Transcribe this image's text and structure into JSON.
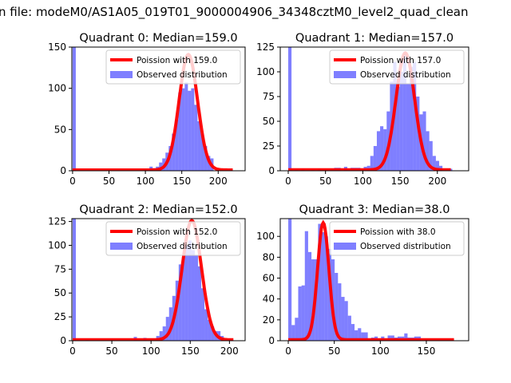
{
  "suptitle": "n file: modeM0/AS1A05_019T01_9000004906_34348cztM0_level2_quad_clean",
  "colors": {
    "hist": "#0000ff",
    "curve": "#ff0000"
  },
  "chart_data": [
    {
      "type": "bar",
      "title": "Quadrant 0: Median=159.0",
      "legend": {
        "curve": "Poission with 159.0",
        "hist": "Observed distribution",
        "placement": "top-right"
      },
      "lambda": 159.0,
      "curve_peak": 140,
      "curve_xmax": 220,
      "bin_start": 0,
      "bin_width": 4.4,
      "values": [
        300,
        0,
        0,
        0,
        0,
        0,
        0,
        0,
        0,
        0,
        0,
        0,
        0,
        0,
        0,
        0,
        0,
        0,
        0,
        0,
        0,
        0,
        2,
        1,
        5,
        3,
        5,
        10,
        15,
        22,
        30,
        45,
        62,
        95,
        100,
        107,
        97,
        100,
        80,
        60,
        45,
        30,
        18,
        15,
        0,
        0,
        0,
        0,
        0,
        2
      ],
      "xlim": [
        -1,
        237
      ],
      "ylim": [
        0,
        150
      ],
      "xticks": [
        "0",
        "50",
        "100",
        "150",
        "200"
      ],
      "yticks": [
        "0",
        "50",
        "100",
        "150"
      ]
    },
    {
      "type": "bar",
      "title": "Quadrant 1: Median=157.0",
      "legend": {
        "curve": "Poission with 157.0",
        "hist": "Observed distribution",
        "placement": "top-right"
      },
      "lambda": 157.0,
      "curve_peak": 118,
      "curve_xmax": 218,
      "bin_start": 0,
      "bin_width": 4.4,
      "values": [
        200,
        0,
        1,
        0,
        2,
        0,
        0,
        1,
        0,
        2,
        1,
        1,
        1,
        2,
        3,
        3,
        0,
        4,
        1,
        3,
        3,
        3,
        0,
        4,
        5,
        15,
        25,
        40,
        45,
        42,
        60,
        90,
        110,
        85,
        100,
        120,
        88,
        105,
        110,
        75,
        57,
        60,
        40,
        30,
        15,
        10,
        5,
        0,
        0,
        2
      ],
      "xlim": [
        -10.7,
        242
      ],
      "ylim": [
        0,
        125
      ],
      "xticks": [
        "0",
        "50",
        "100",
        "150",
        "200"
      ],
      "yticks": [
        "0",
        "25",
        "50",
        "75",
        "100",
        "125"
      ]
    },
    {
      "type": "bar",
      "title": "Quadrant 2: Median=152.0",
      "legend": {
        "curve": "Poission with 152.0",
        "hist": "Observed distribution",
        "placement": "top-right"
      },
      "lambda": 152.0,
      "curve_peak": 125,
      "curve_xmax": 205,
      "bin_start": 0,
      "bin_width": 4.1,
      "values": [
        200,
        0,
        0,
        0,
        1,
        0,
        0,
        0,
        0,
        0,
        0,
        0,
        1,
        0,
        0,
        0,
        0,
        0,
        0,
        4,
        1,
        0,
        3,
        0,
        2,
        2,
        5,
        10,
        15,
        25,
        35,
        47,
        63,
        80,
        88,
        100,
        105,
        95,
        90,
        78,
        55,
        33,
        22,
        15,
        10,
        10,
        5,
        0,
        0,
        1
      ],
      "xlim": [
        -1,
        220
      ],
      "ylim": [
        0,
        128
      ],
      "xticks": [
        "0",
        "50",
        "100",
        "150",
        "200"
      ],
      "yticks": [
        "0",
        "25",
        "50",
        "75",
        "100",
        "125"
      ]
    },
    {
      "type": "bar",
      "title": "Quadrant 3: Median=38.0",
      "legend": {
        "curve": "Poission with 38.0",
        "hist": "Observed distribution",
        "placement": "top-right"
      },
      "lambda": 38.0,
      "curve_peak": 112,
      "curve_xmax": 180,
      "bin_start": 0,
      "bin_width": 3.6,
      "values": [
        150,
        15,
        22,
        52,
        53,
        105,
        85,
        78,
        78,
        112,
        104,
        100,
        88,
        78,
        65,
        55,
        42,
        38,
        24,
        16,
        10,
        12,
        8,
        8,
        2,
        3,
        4,
        2,
        4,
        1,
        5,
        5,
        3,
        4,
        4,
        7,
        3,
        3,
        4,
        4,
        0,
        1,
        0,
        0,
        0,
        0,
        0,
        0,
        0,
        0
      ],
      "xlim": [
        -8.7,
        196
      ],
      "ylim": [
        0,
        117
      ],
      "xticks": [
        "0",
        "50",
        "100",
        "150"
      ],
      "yticks": [
        "0",
        "20",
        "40",
        "60",
        "80",
        "100"
      ]
    }
  ]
}
